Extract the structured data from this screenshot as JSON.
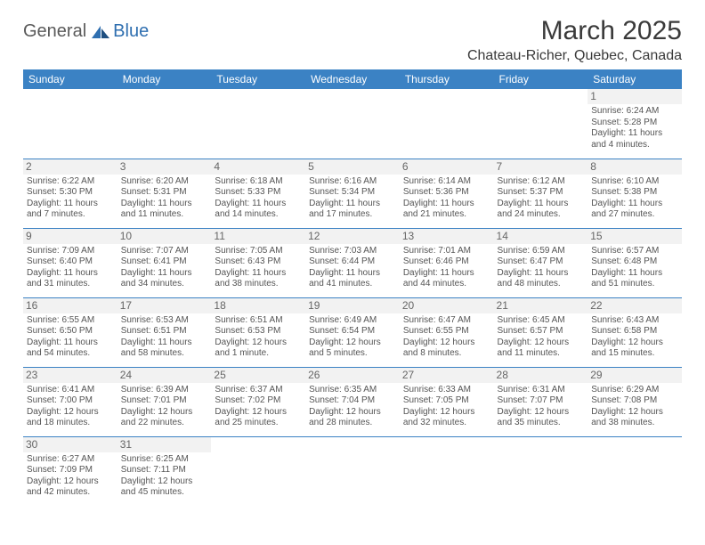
{
  "branding": {
    "logo_part1": "General",
    "logo_part2": "Blue",
    "logo_shape_color": "#2f6fb0"
  },
  "header": {
    "month_title": "March 2025",
    "location": "Chateau-Richer, Quebec, Canada"
  },
  "styling": {
    "header_bg": "#3b82c4",
    "header_text": "#ffffff",
    "border_color": "#3b82c4",
    "daynum_bg": "#f2f2f2",
    "body_text": "#555555",
    "page_bg": "#ffffff",
    "title_fontsize": 30,
    "location_fontsize": 16,
    "dayheader_fontsize": 12,
    "cell_fontsize": 10
  },
  "calendar": {
    "day_headers": [
      "Sunday",
      "Monday",
      "Tuesday",
      "Wednesday",
      "Thursday",
      "Friday",
      "Saturday"
    ],
    "weeks": [
      [
        {
          "day": "",
          "sunrise": "",
          "sunset": "",
          "daylight": ""
        },
        {
          "day": "",
          "sunrise": "",
          "sunset": "",
          "daylight": ""
        },
        {
          "day": "",
          "sunrise": "",
          "sunset": "",
          "daylight": ""
        },
        {
          "day": "",
          "sunrise": "",
          "sunset": "",
          "daylight": ""
        },
        {
          "day": "",
          "sunrise": "",
          "sunset": "",
          "daylight": ""
        },
        {
          "day": "",
          "sunrise": "",
          "sunset": "",
          "daylight": ""
        },
        {
          "day": "1",
          "sunrise": "Sunrise: 6:24 AM",
          "sunset": "Sunset: 5:28 PM",
          "daylight": "Daylight: 11 hours and 4 minutes."
        }
      ],
      [
        {
          "day": "2",
          "sunrise": "Sunrise: 6:22 AM",
          "sunset": "Sunset: 5:30 PM",
          "daylight": "Daylight: 11 hours and 7 minutes."
        },
        {
          "day": "3",
          "sunrise": "Sunrise: 6:20 AM",
          "sunset": "Sunset: 5:31 PM",
          "daylight": "Daylight: 11 hours and 11 minutes."
        },
        {
          "day": "4",
          "sunrise": "Sunrise: 6:18 AM",
          "sunset": "Sunset: 5:33 PM",
          "daylight": "Daylight: 11 hours and 14 minutes."
        },
        {
          "day": "5",
          "sunrise": "Sunrise: 6:16 AM",
          "sunset": "Sunset: 5:34 PM",
          "daylight": "Daylight: 11 hours and 17 minutes."
        },
        {
          "day": "6",
          "sunrise": "Sunrise: 6:14 AM",
          "sunset": "Sunset: 5:36 PM",
          "daylight": "Daylight: 11 hours and 21 minutes."
        },
        {
          "day": "7",
          "sunrise": "Sunrise: 6:12 AM",
          "sunset": "Sunset: 5:37 PM",
          "daylight": "Daylight: 11 hours and 24 minutes."
        },
        {
          "day": "8",
          "sunrise": "Sunrise: 6:10 AM",
          "sunset": "Sunset: 5:38 PM",
          "daylight": "Daylight: 11 hours and 27 minutes."
        }
      ],
      [
        {
          "day": "9",
          "sunrise": "Sunrise: 7:09 AM",
          "sunset": "Sunset: 6:40 PM",
          "daylight": "Daylight: 11 hours and 31 minutes."
        },
        {
          "day": "10",
          "sunrise": "Sunrise: 7:07 AM",
          "sunset": "Sunset: 6:41 PM",
          "daylight": "Daylight: 11 hours and 34 minutes."
        },
        {
          "day": "11",
          "sunrise": "Sunrise: 7:05 AM",
          "sunset": "Sunset: 6:43 PM",
          "daylight": "Daylight: 11 hours and 38 minutes."
        },
        {
          "day": "12",
          "sunrise": "Sunrise: 7:03 AM",
          "sunset": "Sunset: 6:44 PM",
          "daylight": "Daylight: 11 hours and 41 minutes."
        },
        {
          "day": "13",
          "sunrise": "Sunrise: 7:01 AM",
          "sunset": "Sunset: 6:46 PM",
          "daylight": "Daylight: 11 hours and 44 minutes."
        },
        {
          "day": "14",
          "sunrise": "Sunrise: 6:59 AM",
          "sunset": "Sunset: 6:47 PM",
          "daylight": "Daylight: 11 hours and 48 minutes."
        },
        {
          "day": "15",
          "sunrise": "Sunrise: 6:57 AM",
          "sunset": "Sunset: 6:48 PM",
          "daylight": "Daylight: 11 hours and 51 minutes."
        }
      ],
      [
        {
          "day": "16",
          "sunrise": "Sunrise: 6:55 AM",
          "sunset": "Sunset: 6:50 PM",
          "daylight": "Daylight: 11 hours and 54 minutes."
        },
        {
          "day": "17",
          "sunrise": "Sunrise: 6:53 AM",
          "sunset": "Sunset: 6:51 PM",
          "daylight": "Daylight: 11 hours and 58 minutes."
        },
        {
          "day": "18",
          "sunrise": "Sunrise: 6:51 AM",
          "sunset": "Sunset: 6:53 PM",
          "daylight": "Daylight: 12 hours and 1 minute."
        },
        {
          "day": "19",
          "sunrise": "Sunrise: 6:49 AM",
          "sunset": "Sunset: 6:54 PM",
          "daylight": "Daylight: 12 hours and 5 minutes."
        },
        {
          "day": "20",
          "sunrise": "Sunrise: 6:47 AM",
          "sunset": "Sunset: 6:55 PM",
          "daylight": "Daylight: 12 hours and 8 minutes."
        },
        {
          "day": "21",
          "sunrise": "Sunrise: 6:45 AM",
          "sunset": "Sunset: 6:57 PM",
          "daylight": "Daylight: 12 hours and 11 minutes."
        },
        {
          "day": "22",
          "sunrise": "Sunrise: 6:43 AM",
          "sunset": "Sunset: 6:58 PM",
          "daylight": "Daylight: 12 hours and 15 minutes."
        }
      ],
      [
        {
          "day": "23",
          "sunrise": "Sunrise: 6:41 AM",
          "sunset": "Sunset: 7:00 PM",
          "daylight": "Daylight: 12 hours and 18 minutes."
        },
        {
          "day": "24",
          "sunrise": "Sunrise: 6:39 AM",
          "sunset": "Sunset: 7:01 PM",
          "daylight": "Daylight: 12 hours and 22 minutes."
        },
        {
          "day": "25",
          "sunrise": "Sunrise: 6:37 AM",
          "sunset": "Sunset: 7:02 PM",
          "daylight": "Daylight: 12 hours and 25 minutes."
        },
        {
          "day": "26",
          "sunrise": "Sunrise: 6:35 AM",
          "sunset": "Sunset: 7:04 PM",
          "daylight": "Daylight: 12 hours and 28 minutes."
        },
        {
          "day": "27",
          "sunrise": "Sunrise: 6:33 AM",
          "sunset": "Sunset: 7:05 PM",
          "daylight": "Daylight: 12 hours and 32 minutes."
        },
        {
          "day": "28",
          "sunrise": "Sunrise: 6:31 AM",
          "sunset": "Sunset: 7:07 PM",
          "daylight": "Daylight: 12 hours and 35 minutes."
        },
        {
          "day": "29",
          "sunrise": "Sunrise: 6:29 AM",
          "sunset": "Sunset: 7:08 PM",
          "daylight": "Daylight: 12 hours and 38 minutes."
        }
      ],
      [
        {
          "day": "30",
          "sunrise": "Sunrise: 6:27 AM",
          "sunset": "Sunset: 7:09 PM",
          "daylight": "Daylight: 12 hours and 42 minutes."
        },
        {
          "day": "31",
          "sunrise": "Sunrise: 6:25 AM",
          "sunset": "Sunset: 7:11 PM",
          "daylight": "Daylight: 12 hours and 45 minutes."
        },
        {
          "day": "",
          "sunrise": "",
          "sunset": "",
          "daylight": ""
        },
        {
          "day": "",
          "sunrise": "",
          "sunset": "",
          "daylight": ""
        },
        {
          "day": "",
          "sunrise": "",
          "sunset": "",
          "daylight": ""
        },
        {
          "day": "",
          "sunrise": "",
          "sunset": "",
          "daylight": ""
        },
        {
          "day": "",
          "sunrise": "",
          "sunset": "",
          "daylight": ""
        }
      ]
    ]
  }
}
